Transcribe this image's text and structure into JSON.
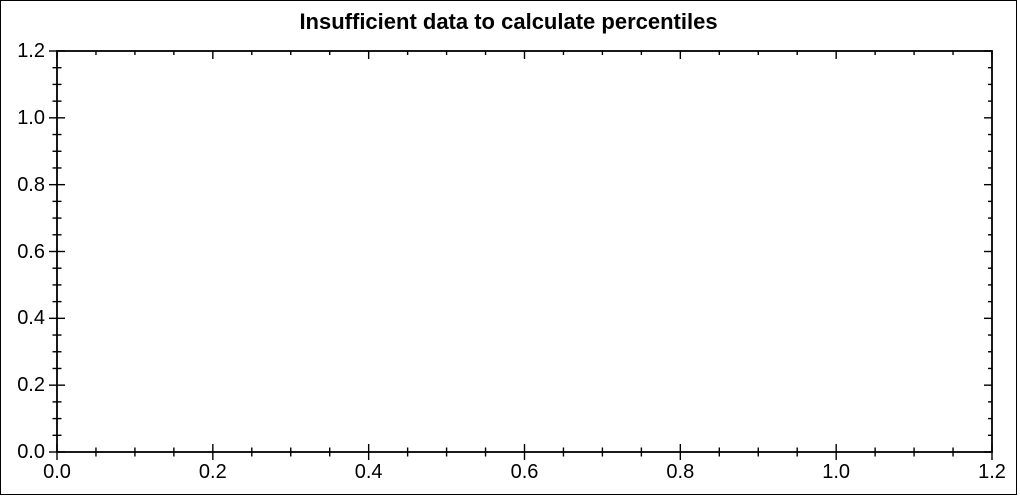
{
  "chart_data": {
    "type": "scatter",
    "title": "Insufficient data to calculate percentiles",
    "xlabel": "",
    "ylabel": "",
    "xlim": [
      0,
      1.2
    ],
    "ylim": [
      0,
      1.2
    ],
    "x_tick_values": [
      0.0,
      0.2,
      0.4,
      0.6,
      0.8,
      1.0,
      1.2
    ],
    "x_tick_labels": [
      "0.0",
      "0.2",
      "0.4",
      "0.6",
      "0.8",
      "1.0",
      "1.2"
    ],
    "y_tick_values": [
      0.0,
      0.2,
      0.4,
      0.6,
      0.8,
      1.0,
      1.2
    ],
    "y_tick_labels": [
      "0.0",
      "0.2",
      "0.4",
      "0.6",
      "0.8",
      "1.0",
      "1.2"
    ],
    "minor_tick_step": 0.05,
    "grid": false,
    "series": []
  },
  "colors": {
    "background": "#ffffff",
    "axis": "#000000",
    "text": "#000000"
  }
}
